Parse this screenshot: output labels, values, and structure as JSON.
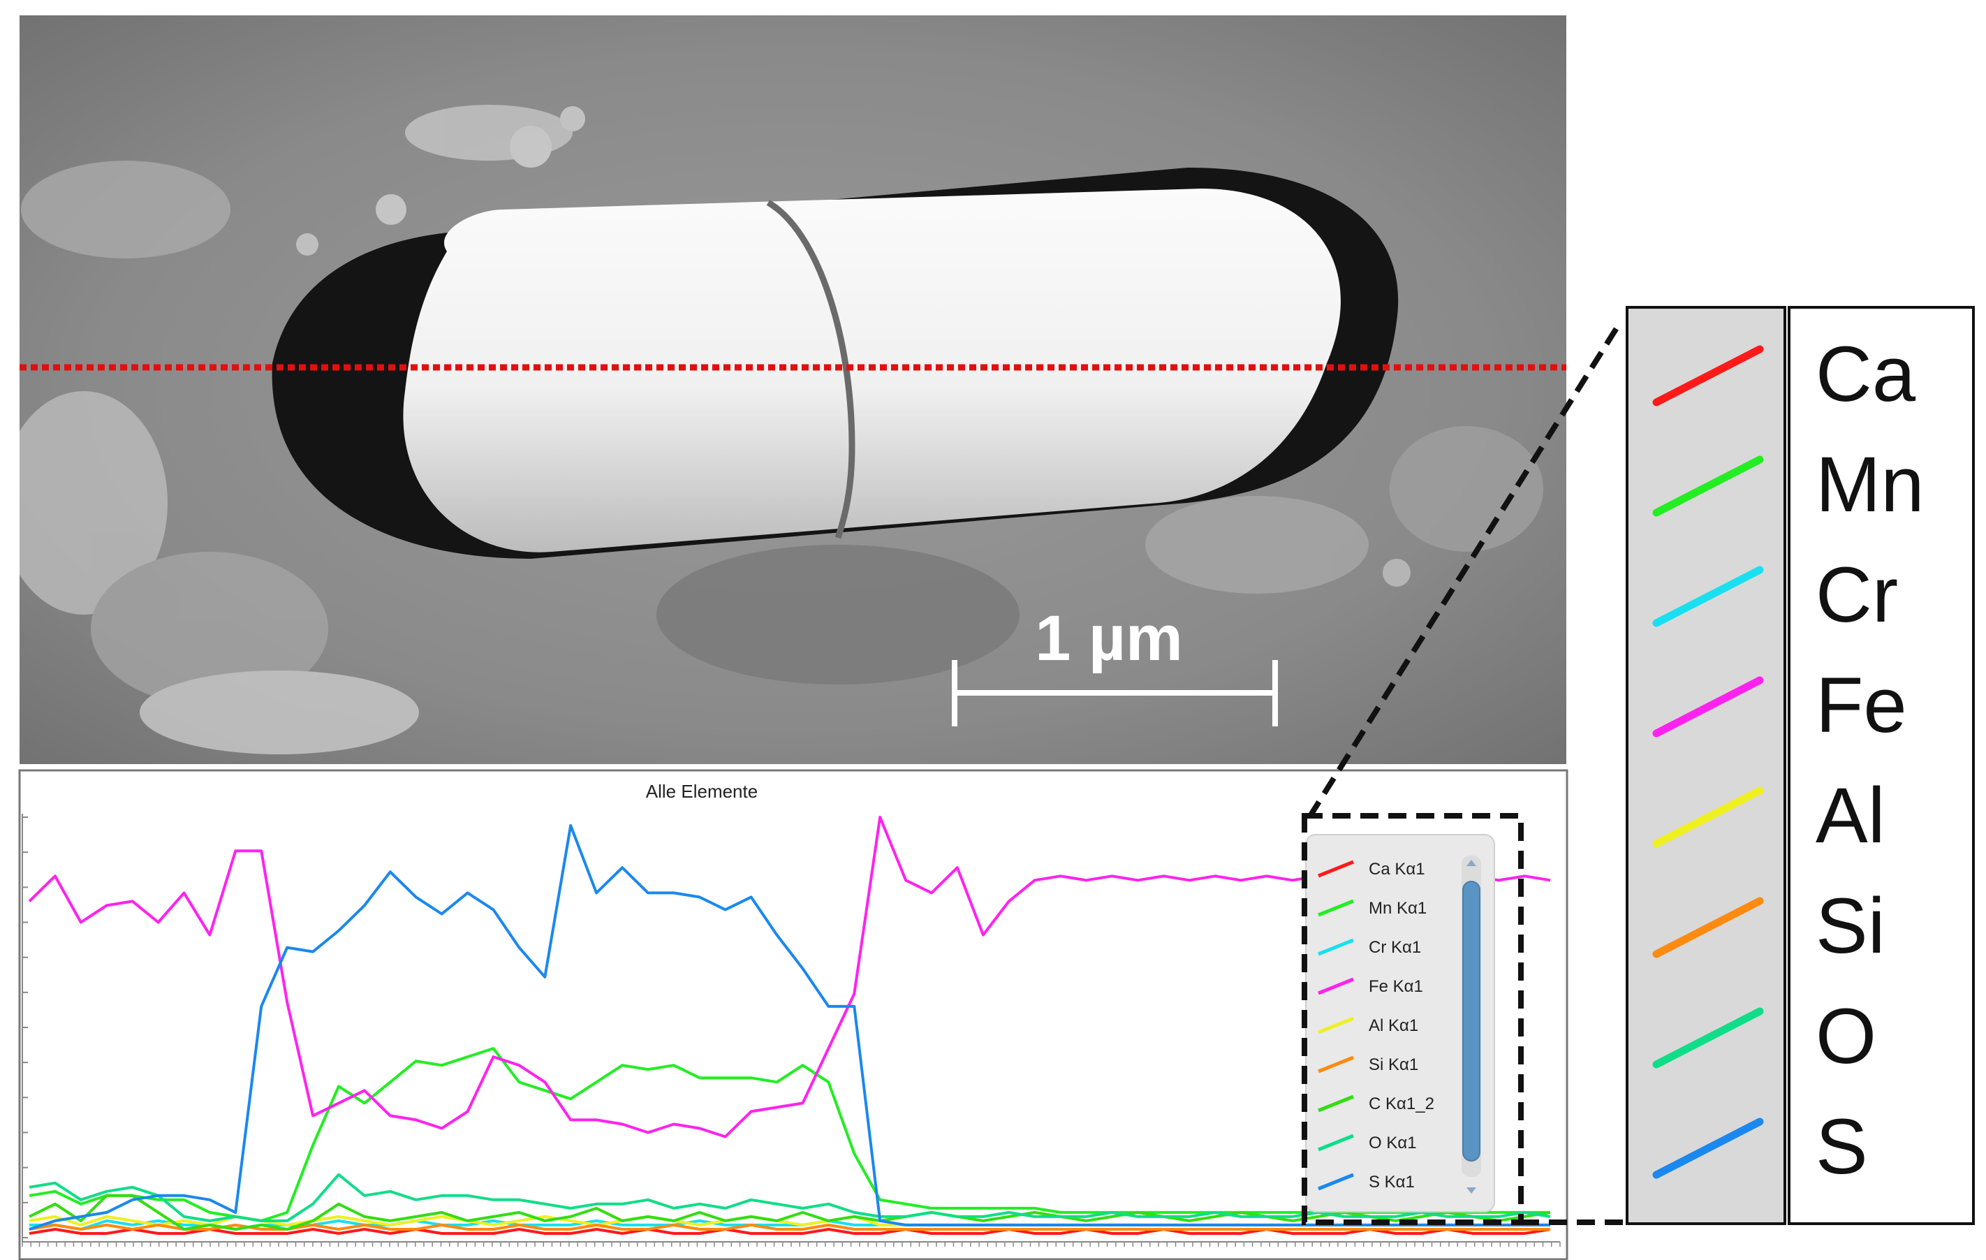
{
  "sem": {
    "scale_bar_label": "1 µm",
    "line_scan_color": "#e01010"
  },
  "chart_data": {
    "type": "line",
    "title": "Alle Elemente",
    "xlabel": "",
    "ylabel": "",
    "x": [
      0,
      1,
      2,
      3,
      4,
      5,
      6,
      7,
      8,
      9,
      10,
      11,
      12,
      13,
      14,
      15,
      16,
      17,
      18,
      19,
      20,
      21,
      22,
      23,
      24,
      25,
      26,
      27,
      28,
      29,
      30,
      31,
      32,
      33,
      34,
      35,
      36,
      37,
      38,
      39,
      40,
      41,
      42,
      43,
      44,
      45,
      46,
      47,
      48,
      49,
      50,
      51,
      52,
      53,
      54,
      55,
      56,
      57,
      58,
      59
    ],
    "xlim": [
      0,
      59
    ],
    "ylim": [
      0,
      100
    ],
    "grid": false,
    "legend_position": "right",
    "series": [
      {
        "name": "Ca Kα1",
        "color": "#ff1a1a",
        "values": [
          1,
          2,
          1,
          1,
          2,
          1,
          1,
          2,
          1,
          1,
          1,
          2,
          1,
          2,
          1,
          2,
          1,
          1,
          1,
          2,
          1,
          1,
          2,
          1,
          2,
          1,
          1,
          2,
          1,
          1,
          1,
          2,
          1,
          1,
          2,
          1,
          1,
          1,
          2,
          1,
          1,
          2,
          1,
          1,
          2,
          1,
          1,
          1,
          2,
          1,
          1,
          1,
          2,
          1,
          1,
          2,
          1,
          1,
          1,
          2
        ]
      },
      {
        "name": "Mn Kα1",
        "color": "#22ee22",
        "values": [
          10,
          11,
          8,
          10,
          10,
          9,
          9,
          6,
          5,
          4,
          6,
          22,
          36,
          32,
          37,
          42,
          41,
          43,
          45,
          37,
          35,
          33,
          37,
          41,
          40,
          41,
          38,
          38,
          38,
          37,
          41,
          37,
          20,
          9,
          8,
          7,
          7,
          7,
          7,
          7,
          6,
          6,
          6,
          6,
          6,
          6,
          6,
          6,
          6,
          6,
          6,
          6,
          6,
          6,
          6,
          6,
          6,
          6,
          6,
          6
        ]
      },
      {
        "name": "Cr Kα1",
        "color": "#18e0f0",
        "values": [
          3,
          3,
          2,
          4,
          3,
          4,
          3,
          3,
          2,
          3,
          3,
          3,
          4,
          3,
          3,
          4,
          3,
          3,
          4,
          3,
          3,
          3,
          4,
          3,
          3,
          3,
          4,
          3,
          3,
          3,
          3,
          4,
          3,
          3,
          3,
          3,
          3,
          3,
          3,
          3,
          3,
          3,
          3,
          3,
          3,
          3,
          3,
          3,
          3,
          3,
          3,
          3,
          3,
          3,
          3,
          3,
          3,
          3,
          3,
          3
        ]
      },
      {
        "name": "Fe Kα1",
        "color": "#ff22ee",
        "values": [
          80,
          86,
          75,
          79,
          80,
          75,
          82,
          72,
          92,
          92,
          56,
          29,
          32,
          35,
          29,
          28,
          26,
          30,
          43,
          41,
          37,
          28,
          28,
          27,
          25,
          27,
          26,
          24,
          30,
          31,
          32,
          45,
          58,
          100,
          85,
          82,
          88,
          72,
          80,
          85,
          86,
          85,
          86,
          85,
          86,
          85,
          86,
          85,
          86,
          85,
          86,
          85,
          86,
          85,
          86,
          85,
          86,
          85,
          86,
          85
        ]
      },
      {
        "name": "Al Kα1",
        "color": "#f0f020",
        "values": [
          4,
          5,
          3,
          5,
          4,
          3,
          4,
          3,
          5,
          4,
          3,
          4,
          5,
          4,
          3,
          4,
          5,
          4,
          3,
          4,
          5,
          4,
          3,
          4,
          5,
          4,
          3,
          4,
          5,
          4,
          3,
          4,
          5,
          3,
          3,
          3,
          3,
          3,
          3,
          3,
          3,
          3,
          3,
          3,
          3,
          3,
          3,
          3,
          3,
          3,
          3,
          3,
          3,
          3,
          3,
          3,
          3,
          3,
          3,
          3
        ]
      },
      {
        "name": "Si Kα1",
        "color": "#ff8a10",
        "values": [
          2,
          3,
          2,
          3,
          2,
          3,
          2,
          2,
          3,
          2,
          2,
          3,
          2,
          3,
          2,
          2,
          3,
          2,
          2,
          3,
          2,
          2,
          3,
          2,
          2,
          3,
          2,
          2,
          3,
          2,
          2,
          3,
          2,
          2,
          2,
          2,
          2,
          2,
          2,
          2,
          2,
          2,
          2,
          2,
          2,
          2,
          2,
          2,
          2,
          2,
          2,
          2,
          2,
          2,
          2,
          2,
          2,
          2,
          2,
          2
        ]
      },
      {
        "name": "C Kα1_2",
        "color": "#33dd11",
        "values": [
          5,
          8,
          4,
          10,
          10,
          6,
          2,
          3,
          2,
          3,
          2,
          4,
          8,
          5,
          4,
          5,
          6,
          4,
          5,
          6,
          4,
          5,
          7,
          4,
          5,
          4,
          6,
          4,
          5,
          4,
          6,
          4,
          5,
          4,
          5,
          6,
          5,
          4,
          5,
          6,
          5,
          4,
          5,
          6,
          5,
          4,
          5,
          6,
          5,
          4,
          5,
          6,
          5,
          4,
          5,
          6,
          5,
          4,
          5,
          6
        ]
      },
      {
        "name": "O Kα1",
        "color": "#10dd88",
        "values": [
          12,
          13,
          9,
          11,
          12,
          10,
          5,
          4,
          5,
          4,
          4,
          8,
          15,
          10,
          11,
          9,
          10,
          10,
          9,
          9,
          8,
          7,
          8,
          8,
          9,
          7,
          8,
          7,
          9,
          8,
          7,
          8,
          6,
          5,
          5,
          6,
          5,
          5,
          6,
          5,
          5,
          5,
          6,
          5,
          5,
          5,
          6,
          5,
          5,
          5,
          6,
          5,
          5,
          5,
          6,
          5,
          5,
          5,
          6,
          5
        ]
      },
      {
        "name": "S Kα1",
        "color": "#1a88ee",
        "values": [
          2,
          4,
          5,
          6,
          9,
          10,
          10,
          9,
          6,
          55,
          69,
          68,
          73,
          79,
          87,
          81,
          77,
          82,
          78,
          69,
          62,
          98,
          82,
          88,
          82,
          82,
          81,
          78,
          81,
          72,
          64,
          55,
          55,
          4,
          3,
          3,
          3,
          3,
          3,
          3,
          3,
          3,
          3,
          3,
          3,
          3,
          3,
          3,
          3,
          3,
          3,
          3,
          3,
          3,
          3,
          3,
          3,
          3,
          3,
          3
        ]
      }
    ]
  },
  "big_legend": {
    "entries": [
      {
        "label": "Ca",
        "color": "#ff1a1a"
      },
      {
        "label": "Mn",
        "color": "#22ee22"
      },
      {
        "label": "Cr",
        "color": "#18e0f0"
      },
      {
        "label": "Fe",
        "color": "#ff22ee"
      },
      {
        "label": "Al",
        "color": "#f0f020"
      },
      {
        "label": "Si",
        "color": "#ff8a10"
      },
      {
        "label": "O",
        "color": "#10dd88"
      },
      {
        "label": "S",
        "color": "#1a88ee"
      }
    ]
  }
}
